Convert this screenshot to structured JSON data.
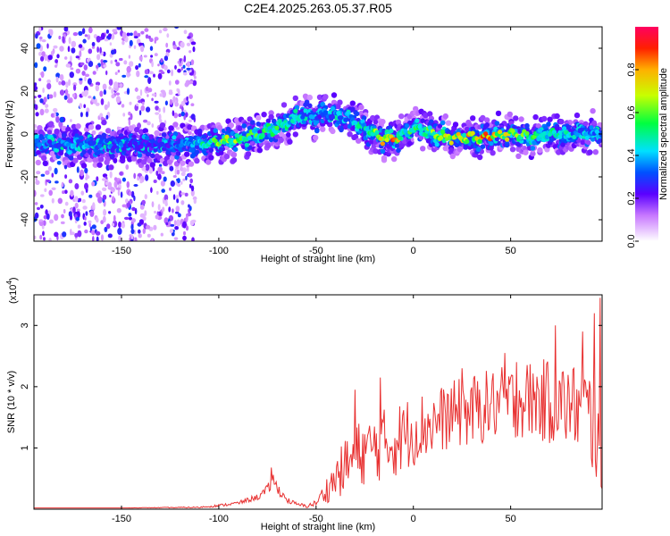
{
  "title": "C2E4.2025.263.05.37.R05",
  "chart_data": [
    {
      "type": "heatmap",
      "name": "spectrogram",
      "xlabel": "Height of straight line (km)",
      "ylabel": "Frequency (Hz)",
      "xlim": [
        -195,
        97
      ],
      "ylim": [
        -50,
        50
      ],
      "xticks": [
        -150,
        -100,
        -50,
        0,
        50
      ],
      "yticks": [
        -40,
        -20,
        0,
        20,
        40
      ],
      "colorbar": {
        "label": "Normalized spectral amplitude",
        "range": [
          0,
          1
        ],
        "ticks": [
          "0.0",
          "0.2",
          "0.4",
          "0.6",
          "0.8"
        ],
        "tick_values": [
          0.0,
          0.2,
          0.4,
          0.6,
          0.8
        ]
      },
      "ridge": {
        "x": [
          -195,
          -170,
          -150,
          -130,
          -110,
          -100,
          -90,
          -80,
          -70,
          -60,
          -55,
          -50,
          -45,
          -40,
          -35,
          -30,
          -25,
          -20,
          -15,
          -10,
          -5,
          0,
          5,
          10,
          20,
          30,
          40,
          50,
          60,
          70,
          80,
          90,
          97
        ],
        "frequency": [
          -5,
          -5,
          -5,
          -5,
          -4.5,
          -4,
          -2,
          0,
          3,
          7,
          9,
          7,
          10,
          8,
          8,
          6,
          3,
          0,
          -2,
          -3,
          0,
          3,
          2,
          0,
          -2,
          -2,
          -1,
          0,
          -1,
          0,
          0,
          1,
          0
        ],
        "amplitude": [
          0.3,
          0.35,
          0.3,
          0.25,
          0.4,
          0.6,
          0.55,
          0.5,
          0.5,
          0.45,
          0.35,
          0.3,
          0.3,
          0.35,
          0.35,
          0.4,
          0.45,
          0.55,
          0.75,
          0.8,
          0.45,
          0.5,
          0.45,
          0.55,
          0.65,
          0.7,
          0.75,
          0.6,
          0.5,
          0.45,
          0.4,
          0.35,
          0.35
        ]
      },
      "noise_region": {
        "x_range": [
          -195,
          -112
        ],
        "frequency_range": [
          -50,
          50
        ]
      }
    },
    {
      "type": "line",
      "name": "snr",
      "xlabel": "Height of straight line (km)",
      "ylabel": "SNR (10 * v/v)",
      "scale_label": "(x10",
      "scale_exponent": "4",
      "scale_close": ")",
      "xlim": [
        -195,
        97
      ],
      "ylim": [
        0,
        3.5
      ],
      "xticks": [
        -150,
        -100,
        -50,
        0,
        50
      ],
      "yticks": [
        1,
        2,
        3
      ],
      "color": "#e83030",
      "envelope": {
        "x": [
          -195,
          -150,
          -110,
          -100,
          -90,
          -80,
          -75,
          -72,
          -70,
          -65,
          -60,
          -55,
          -50,
          -45,
          -40,
          -35,
          -30,
          -25,
          -20,
          -15,
          -10,
          -5,
          0,
          10,
          20,
          30,
          40,
          50,
          60,
          70,
          80,
          90,
          95,
          97
        ],
        "mean": [
          0.02,
          0.02,
          0.03,
          0.06,
          0.1,
          0.2,
          0.3,
          0.45,
          0.35,
          0.15,
          0.08,
          0.05,
          0.1,
          0.3,
          0.5,
          0.7,
          0.85,
          0.95,
          1.0,
          1.05,
          1.1,
          1.2,
          1.3,
          1.4,
          1.55,
          1.6,
          1.7,
          1.75,
          1.8,
          1.75,
          1.7,
          1.6,
          1.0,
          0.6
        ],
        "spread": [
          0.0,
          0.0,
          0.01,
          0.02,
          0.03,
          0.05,
          0.1,
          0.15,
          0.1,
          0.05,
          0.03,
          0.03,
          0.05,
          0.2,
          0.35,
          0.45,
          0.55,
          0.55,
          0.55,
          0.6,
          0.6,
          0.6,
          0.6,
          0.55,
          0.55,
          0.6,
          0.6,
          0.6,
          0.65,
          0.7,
          0.7,
          0.75,
          0.9,
          0.9
        ]
      },
      "peaks": [
        {
          "x": -73,
          "y": 0.68
        },
        {
          "x": -30,
          "y": 1.95
        },
        {
          "x": -17,
          "y": 2.15
        },
        {
          "x": 25,
          "y": 2.3
        },
        {
          "x": 47,
          "y": 2.55
        },
        {
          "x": 53,
          "y": 2.4
        },
        {
          "x": 73,
          "y": 3.0
        },
        {
          "x": 87,
          "y": 2.9
        },
        {
          "x": 93,
          "y": 3.2
        },
        {
          "x": 96,
          "y": 3.45
        }
      ]
    }
  ]
}
